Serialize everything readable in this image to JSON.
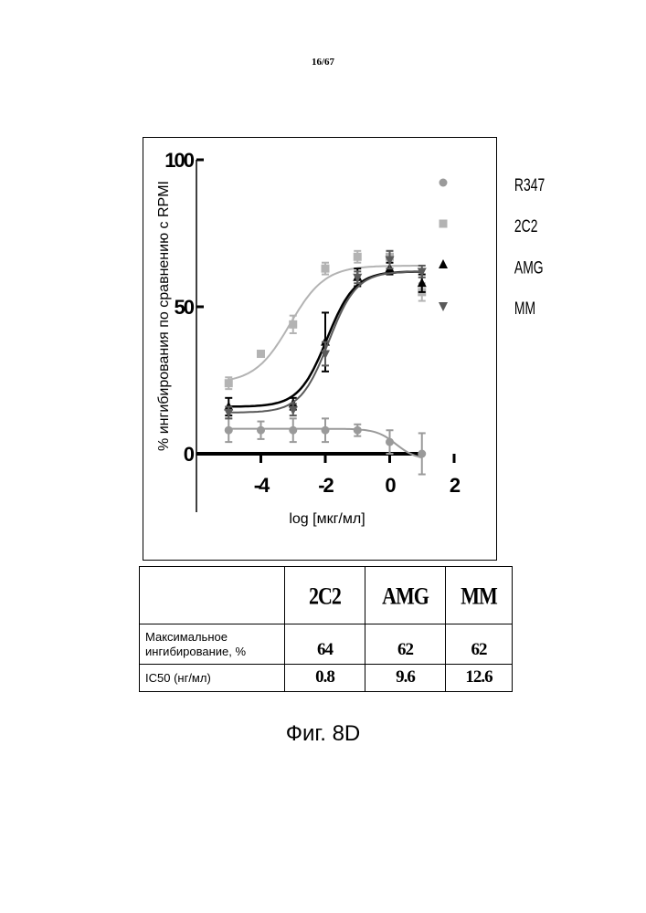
{
  "page_number": "16/67",
  "figure_caption": "Фиг. 8D",
  "chart_data": {
    "type": "scatter",
    "xlabel": "log [мкг/мл]",
    "ylabel": "% ингибирования по сравнению с RPMI",
    "x_ticks": [
      "-4",
      "-2",
      "0",
      "2"
    ],
    "y_ticks": [
      "0",
      "50",
      "100"
    ],
    "xlim": [
      -6,
      2
    ],
    "ylim": [
      0,
      100
    ],
    "legend_position": "top-right",
    "series": [
      {
        "name": "R347",
        "marker": "circle",
        "color": "#9a9a9a",
        "x": [
          -5,
          -4,
          -3,
          -2,
          -1,
          0,
          1
        ],
        "y": [
          8,
          8,
          8,
          8,
          8,
          4,
          0
        ],
        "err": [
          4,
          3,
          4,
          4,
          2,
          4,
          7
        ],
        "fit": {
          "bottom": 8.5,
          "top": -2,
          "logec50": 0.2,
          "hill": 1.4
        }
      },
      {
        "name": "2C2",
        "marker": "square",
        "color": "#b3b3b3",
        "x": [
          -5,
          -4,
          -3,
          -2,
          -1,
          0,
          1
        ],
        "y": [
          24,
          34,
          44,
          63,
          67,
          67,
          55
        ],
        "err": [
          2,
          1,
          3,
          2,
          2,
          2,
          3
        ],
        "fit": {
          "bottom": 24,
          "top": 64,
          "logec50": -3.1,
          "hill": 0.8
        }
      },
      {
        "name": "AMG",
        "marker": "triangle-up",
        "color": "#000000",
        "x": [
          -5,
          -3,
          -2,
          -1,
          0,
          1
        ],
        "y": [
          16,
          17,
          38,
          60,
          63,
          58
        ],
        "err": [
          3,
          2,
          10,
          3,
          2,
          3
        ],
        "fit": {
          "bottom": 16,
          "top": 62,
          "logec50": -1.95,
          "hill": 1.0
        }
      },
      {
        "name": "MM",
        "marker": "triangle-down",
        "color": "#5a5a5a",
        "x": [
          -5,
          -3,
          -2,
          -1,
          0,
          1
        ],
        "y": [
          14,
          15,
          34,
          60,
          66,
          62
        ],
        "err": [
          2,
          2,
          4,
          2,
          3,
          2
        ],
        "fit": {
          "bottom": 14,
          "top": 62,
          "logec50": -1.9,
          "hill": 1.0
        }
      }
    ]
  },
  "table": {
    "headers": [
      "",
      "2C2",
      "AMG",
      "MM"
    ],
    "rows": [
      {
        "label_line1": "Максимальное",
        "label_line2": "ингибирование, %",
        "values": [
          "64",
          "62",
          "62"
        ]
      },
      {
        "label": "IC50 (нг/мл)",
        "values": [
          "0.8",
          "9.6",
          "12.6"
        ]
      }
    ]
  }
}
